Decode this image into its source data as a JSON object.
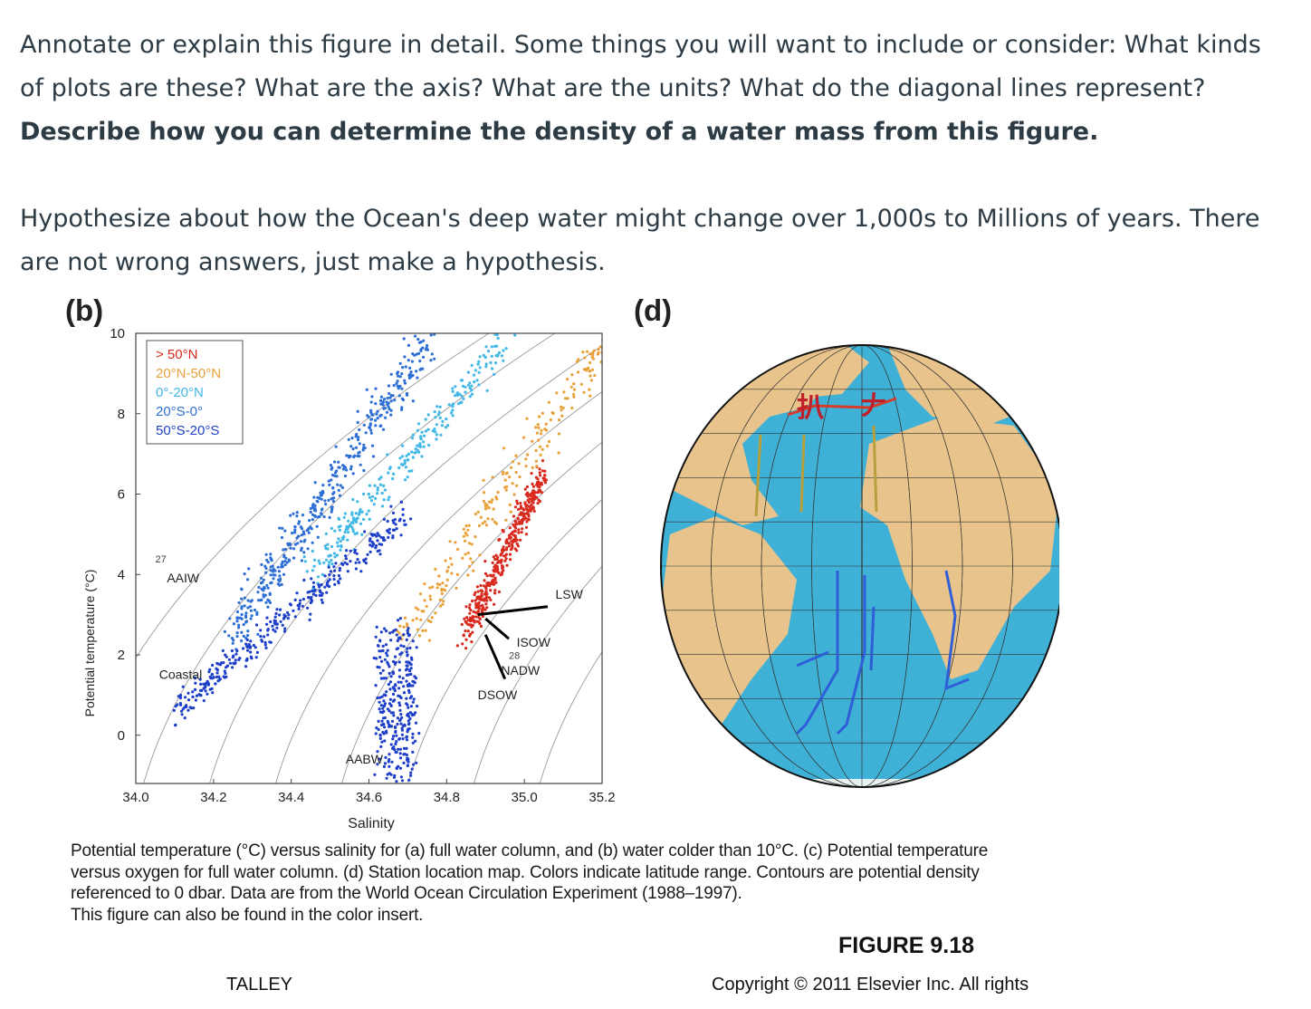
{
  "prompt": {
    "line1": "Annotate or explain this figure in detail.  Some things you will want to include or consider:  What kinds of plots are these? What are the axis? What are the units? What do the diagonal lines represent? ",
    "line1_bold": "Describe how you can determine the density of a water mass from this figure.",
    "line2": "Hypothesize about how the Ocean's deep water might change over 1,000s to Millions of years. There are not wrong answers, just make a hypothesis."
  },
  "figure": {
    "panel_b": "(b)",
    "panel_d": "(d)",
    "caption_l1": "Potential temperature (°C) versus salinity for (a) full water column, and (b) water colder than 10°C. (c) Potential temperature",
    "caption_l2": "versus oxygen for full water column. (d) Station location map. Colors indicate latitude range. Contours are potential density",
    "caption_l3": "referenced to 0 dbar. Data are from the World Ocean Circulation Experiment (1988–1997).",
    "caption_l4": "This figure can also be found in the color insert.",
    "figure_label": "FIGURE 9.18",
    "author": "TALLEY",
    "copyright": "Copyright © 2011 Elsevier Inc. All rights"
  },
  "chart_data": {
    "type": "scatter",
    "xlabel": "Salinity",
    "ylabel": "Potential temperature (°C)",
    "xlim": [
      34.0,
      35.2
    ],
    "ylim": [
      -1.2,
      10
    ],
    "xticks": [
      "34.0",
      "34.2",
      "34.4",
      "34.6",
      "34.8",
      "35.0",
      "35.2"
    ],
    "yticks": [
      "0",
      "2",
      "4",
      "6",
      "8",
      "10"
    ],
    "legend_position": "top-left",
    "series": [
      {
        "name": "> 50°N",
        "color": "#d92a1f"
      },
      {
        "name": "20°N-50°N",
        "color": "#e9a13a"
      },
      {
        "name": "0°-20°N",
        "color": "#41b8e6"
      },
      {
        "name": "20°S-0°",
        "color": "#2e6fd6"
      },
      {
        "name": "50°S-20°S",
        "color": "#1e3fc9"
      }
    ],
    "density_contour_labels": [
      "27",
      "28"
    ],
    "water_mass_labels": [
      "AAIW",
      "Coastal",
      "LSW",
      "ISOW",
      "NADW",
      "DSOW",
      "AABW"
    ]
  },
  "map": {
    "land_color": "#e8c48c",
    "ocean_color": "#3fb0d6",
    "marker_labels": [
      "扒",
      "𠂇"
    ]
  }
}
